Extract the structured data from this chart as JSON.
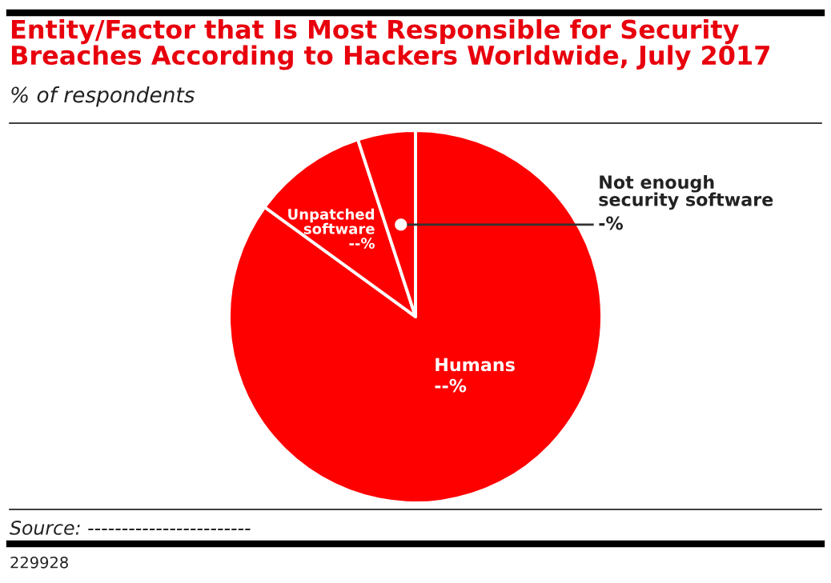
{
  "chart_data": {
    "type": "pie",
    "title": "Entity/Factor that Is Most Responsible for Security\nBreaches According to Hackers Worldwide, July 2017",
    "subtitle": "% of respondents",
    "categories": [
      "Humans",
      "Unpatched\nsoftware",
      "Not enough\nsecurity software"
    ],
    "values": [
      85,
      10,
      5
    ],
    "value_labels": [
      "--%",
      "--%",
      "-%"
    ],
    "colors": [
      "#ff0000",
      "#ff0000",
      "#ff0000"
    ],
    "annotations": [
      "Source: ------------------------",
      "229928"
    ]
  }
}
